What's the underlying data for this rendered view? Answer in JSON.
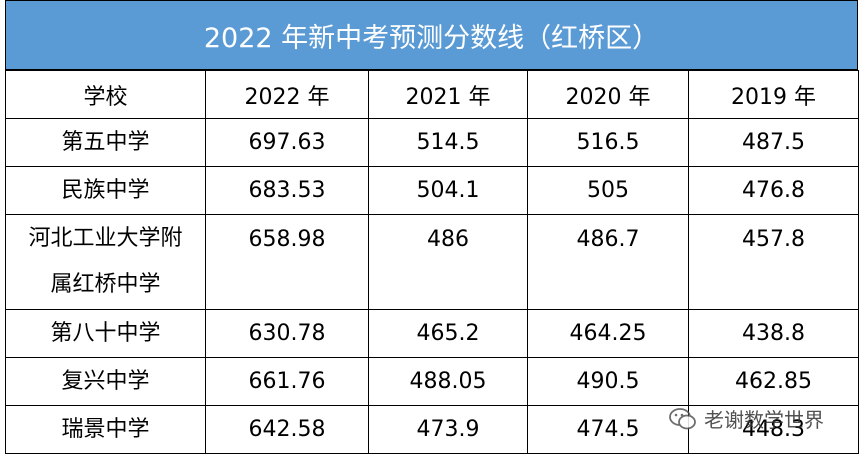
{
  "header": {
    "title": "2022 年新中考预测分数线（红桥区）"
  },
  "table": {
    "columns": [
      "学校",
      "2022 年",
      "2021 年",
      "2020 年",
      "2019 年"
    ],
    "rows": [
      [
        "第五中学",
        "697.63",
        "514.5",
        "516.5",
        "487.5"
      ],
      [
        "民族中学",
        "683.53",
        "504.1",
        "505",
        "476.8"
      ],
      [
        "河北工业大学附属红桥中学",
        "658.98",
        "486",
        "486.7",
        "457.8"
      ],
      [
        "第八十中学",
        "630.78",
        "465.2",
        "464.25",
        "438.8"
      ],
      [
        "复兴中学",
        "661.76",
        "488.05",
        "490.5",
        "462.85"
      ],
      [
        "瑞景中学",
        "642.58",
        "473.9",
        "474.5",
        "448.3"
      ]
    ]
  },
  "watermark": "老谢数学世界"
}
